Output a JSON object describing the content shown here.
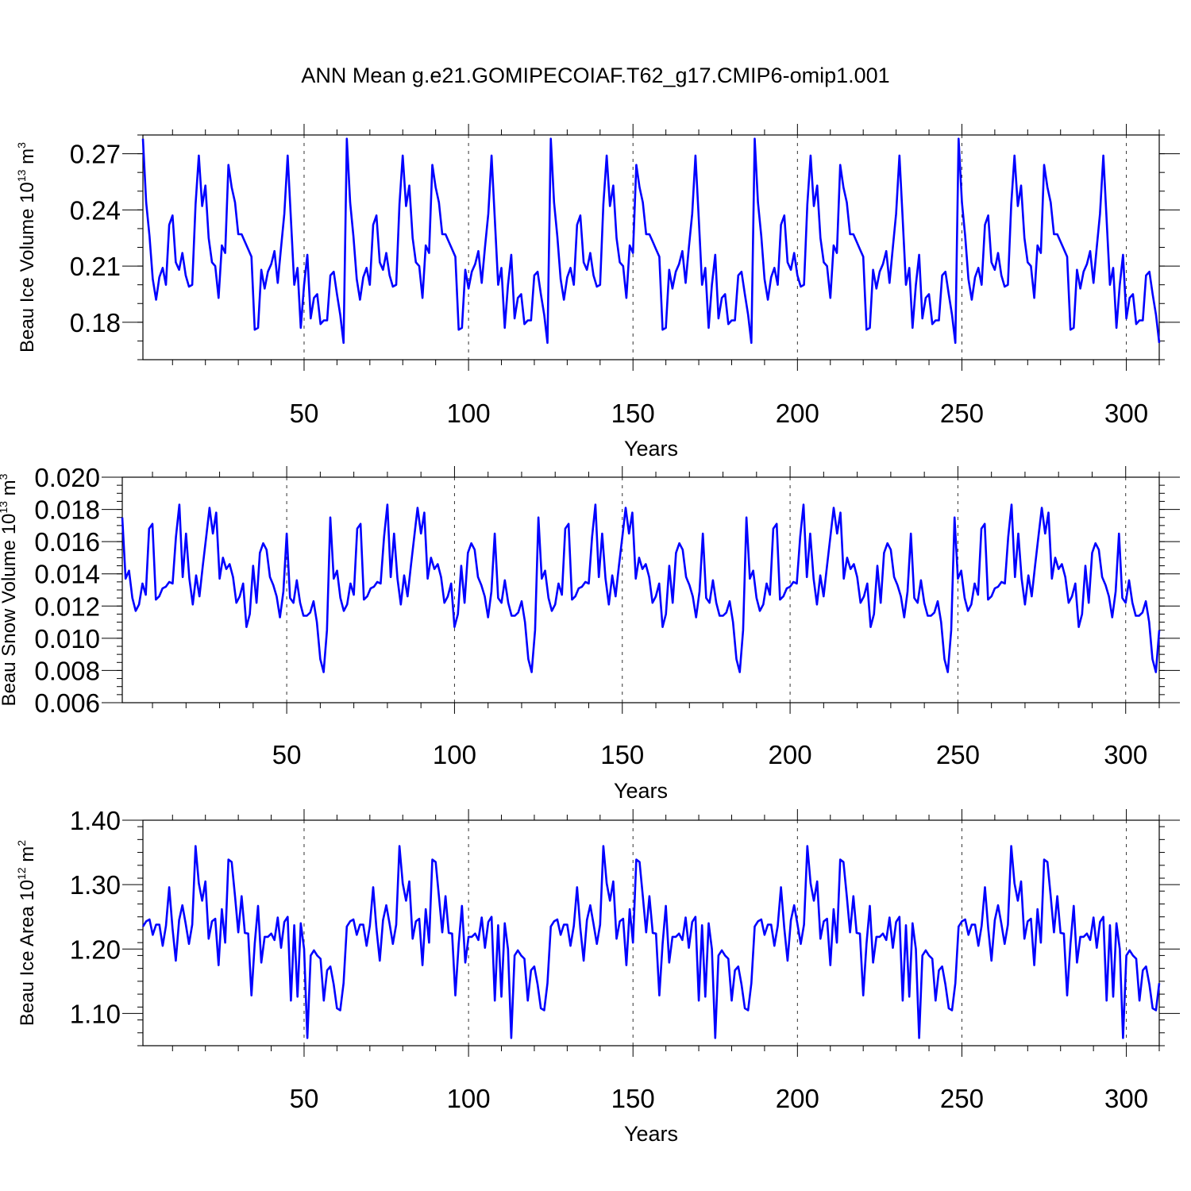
{
  "title": "ANN Mean g.e21.GOMIPECOIAF.T62_g17.CMIP6-omip1.001",
  "colors": {
    "line": "#0000ff",
    "axes": "#000000",
    "ref": "#333333"
  },
  "chart_data": [
    {
      "type": "line",
      "id": "ice-volume",
      "ylabel_text": "Beau Ice Volume 10",
      "ylabel_exp": "13",
      "ylabel_unit": " m",
      "ylabel_unit_exp": "3",
      "xlabel": "Years",
      "xlim": [
        1,
        310
      ],
      "ylim": [
        0.16,
        0.28
      ],
      "yticks": [
        0.18,
        0.21,
        0.24,
        0.27
      ],
      "ytick_labels": [
        "0.18",
        "0.21",
        "0.24",
        "0.27"
      ],
      "y_minor_step": 0.01,
      "xticks": [
        50,
        100,
        150,
        200,
        250,
        300
      ],
      "xtick_labels": [
        "50",
        "100",
        "150",
        "200",
        "250",
        "300"
      ],
      "ref_lines_x": [
        50,
        100,
        150,
        200,
        250,
        300
      ],
      "cycle": [
        0.278,
        0.244,
        0.226,
        0.203,
        0.192,
        0.204,
        0.209,
        0.2,
        0.232,
        0.237,
        0.212,
        0.208,
        0.217,
        0.205,
        0.199,
        0.2,
        0.243,
        0.269,
        0.242,
        0.253,
        0.225,
        0.212,
        0.21,
        0.193,
        0.221,
        0.217,
        0.264,
        0.252,
        0.244,
        0.227,
        0.227,
        0.223,
        0.219,
        0.215,
        0.176,
        0.177,
        0.208,
        0.198,
        0.207,
        0.211,
        0.218,
        0.201,
        0.22,
        0.238,
        0.269,
        0.235,
        0.2,
        0.209,
        0.177,
        0.2,
        0.216,
        0.182,
        0.193,
        0.195,
        0.179,
        0.181,
        0.181,
        0.205,
        0.207,
        0.195,
        0.184,
        0.169
      ],
      "cycle_start_index": 19,
      "n": 310
    },
    {
      "type": "line",
      "id": "snow-volume",
      "ylabel_text": "Beau Snow Volume 10",
      "ylabel_exp": "13",
      "ylabel_unit": " m",
      "ylabel_unit_exp": "3",
      "xlabel": "Years",
      "xlim": [
        1,
        310
      ],
      "ylim": [
        0.006,
        0.02
      ],
      "yticks": [
        0.006,
        0.008,
        0.01,
        0.012,
        0.014,
        0.016,
        0.018,
        0.02
      ],
      "ytick_labels": [
        "0.006",
        "0.008",
        "0.010",
        "0.012",
        "0.014",
        "0.016",
        "0.018",
        "0.020"
      ],
      "y_minor_step": 0.0005,
      "xticks": [
        50,
        100,
        150,
        200,
        250,
        300
      ],
      "xtick_labels": [
        "50",
        "100",
        "150",
        "200",
        "250",
        "300"
      ],
      "ref_lines_x": [
        50,
        100,
        150,
        200,
        250,
        300
      ],
      "cycle": [
        0.0175,
        0.0137,
        0.0142,
        0.0125,
        0.0117,
        0.0121,
        0.0134,
        0.0127,
        0.0168,
        0.0171,
        0.0124,
        0.0126,
        0.0131,
        0.0132,
        0.0135,
        0.0134,
        0.0163,
        0.0183,
        0.0138,
        0.0165,
        0.0137,
        0.0121,
        0.0139,
        0.0126,
        0.0145,
        0.0163,
        0.0181,
        0.0165,
        0.0178,
        0.0137,
        0.015,
        0.0143,
        0.0146,
        0.0138,
        0.0122,
        0.0126,
        0.0134,
        0.0107,
        0.0115,
        0.0145,
        0.0122,
        0.0153,
        0.0159,
        0.0155,
        0.0138,
        0.0133,
        0.0126,
        0.0113,
        0.0129,
        0.0165,
        0.0125,
        0.0122,
        0.0136,
        0.0122,
        0.0114,
        0.0114,
        0.0116,
        0.0123,
        0.011,
        0.0087,
        0.0079,
        0.0105
      ],
      "cycle_start_index": 19,
      "n": 310
    },
    {
      "type": "line",
      "id": "ice-area",
      "ylabel_text": "Beau Ice Area 10",
      "ylabel_exp": "12",
      "ylabel_unit": " m",
      "ylabel_unit_exp": "2",
      "xlabel": "Years",
      "xlim": [
        1,
        310
      ],
      "ylim": [
        1.05,
        1.4
      ],
      "yticks": [
        1.1,
        1.2,
        1.3,
        1.4
      ],
      "ytick_labels": [
        "1.10",
        "1.20",
        "1.30",
        "1.40"
      ],
      "y_minor_step": 0.02,
      "xticks": [
        50,
        100,
        150,
        200,
        250,
        300
      ],
      "xtick_labels": [
        "50",
        "100",
        "150",
        "200",
        "250",
        "300"
      ],
      "ref_lines_x": [
        50,
        100,
        150,
        200,
        250,
        300
      ],
      "cycle": [
        1.235,
        1.243,
        1.246,
        1.222,
        1.238,
        1.238,
        1.205,
        1.236,
        1.296,
        1.232,
        1.182,
        1.245,
        1.268,
        1.239,
        1.208,
        1.238,
        1.36,
        1.302,
        1.275,
        1.305,
        1.216,
        1.243,
        1.247,
        1.175,
        1.262,
        1.21,
        1.339,
        1.335,
        1.282,
        1.226,
        1.282,
        1.225,
        1.224,
        1.128,
        1.208,
        1.267,
        1.179,
        1.219,
        1.219,
        1.224,
        1.214,
        1.249,
        1.202,
        1.242,
        1.25,
        1.12,
        1.237,
        1.126,
        1.24,
        1.2,
        1.062,
        1.19,
        1.198,
        1.19,
        1.185,
        1.12,
        1.167,
        1.173,
        1.145,
        1.108,
        1.105,
        1.147
      ],
      "cycle_start_index": 19,
      "n": 310
    }
  ]
}
